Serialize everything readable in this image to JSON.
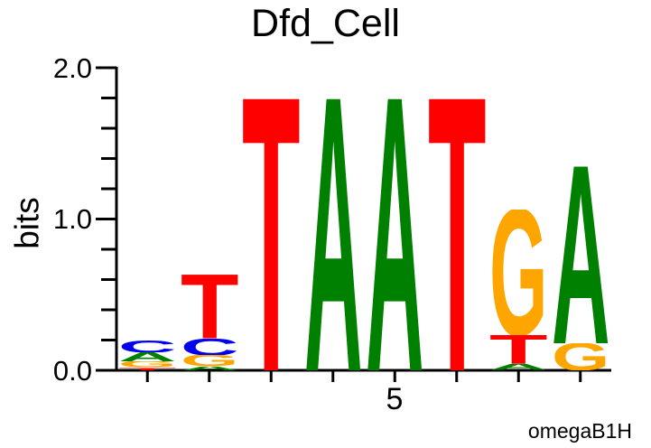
{
  "chart_data": {
    "type": "sequence_logo",
    "title": "Dfd_Cell",
    "ylabel": "bits",
    "ylim": [
      0.0,
      2.0
    ],
    "y_major_ticks": [
      2.0,
      1.0,
      0.0
    ],
    "y_tick_labels": [
      "2.0",
      "1.0",
      "0.0"
    ],
    "y_minor_tick_step": 0.2,
    "num_positions": 8,
    "x_tick_label": "5",
    "x_tick_label_position": 5,
    "attribution": "omegaB1H",
    "colors": {
      "A": "#008000",
      "C": "#0000EE",
      "G": "#FFA500",
      "T": "#FF0000"
    },
    "positions": [
      {
        "index": 1,
        "stack": [
          {
            "base": "T",
            "bits": 0.02
          },
          {
            "base": "G",
            "bits": 0.04
          },
          {
            "base": "A",
            "bits": 0.06
          },
          {
            "base": "C",
            "bits": 0.08
          }
        ]
      },
      {
        "index": 2,
        "stack": [
          {
            "base": "A",
            "bits": 0.025
          },
          {
            "base": "G",
            "bits": 0.075
          },
          {
            "base": "C",
            "bits": 0.11
          },
          {
            "base": "T",
            "bits": 0.42
          }
        ]
      },
      {
        "index": 3,
        "stack": [
          {
            "base": "T",
            "bits": 1.8
          }
        ]
      },
      {
        "index": 4,
        "stack": [
          {
            "base": "A",
            "bits": 1.8
          }
        ]
      },
      {
        "index": 5,
        "stack": [
          {
            "base": "A",
            "bits": 1.8
          }
        ]
      },
      {
        "index": 6,
        "stack": [
          {
            "base": "T",
            "bits": 1.8
          }
        ]
      },
      {
        "index": 7,
        "stack": [
          {
            "base": "A",
            "bits": 0.04
          },
          {
            "base": "T",
            "bits": 0.19
          },
          {
            "base": "G",
            "bits": 0.83
          }
        ]
      },
      {
        "index": 8,
        "stack": [
          {
            "base": "G",
            "bits": 0.18
          },
          {
            "base": "A",
            "bits": 1.17
          }
        ]
      }
    ]
  }
}
